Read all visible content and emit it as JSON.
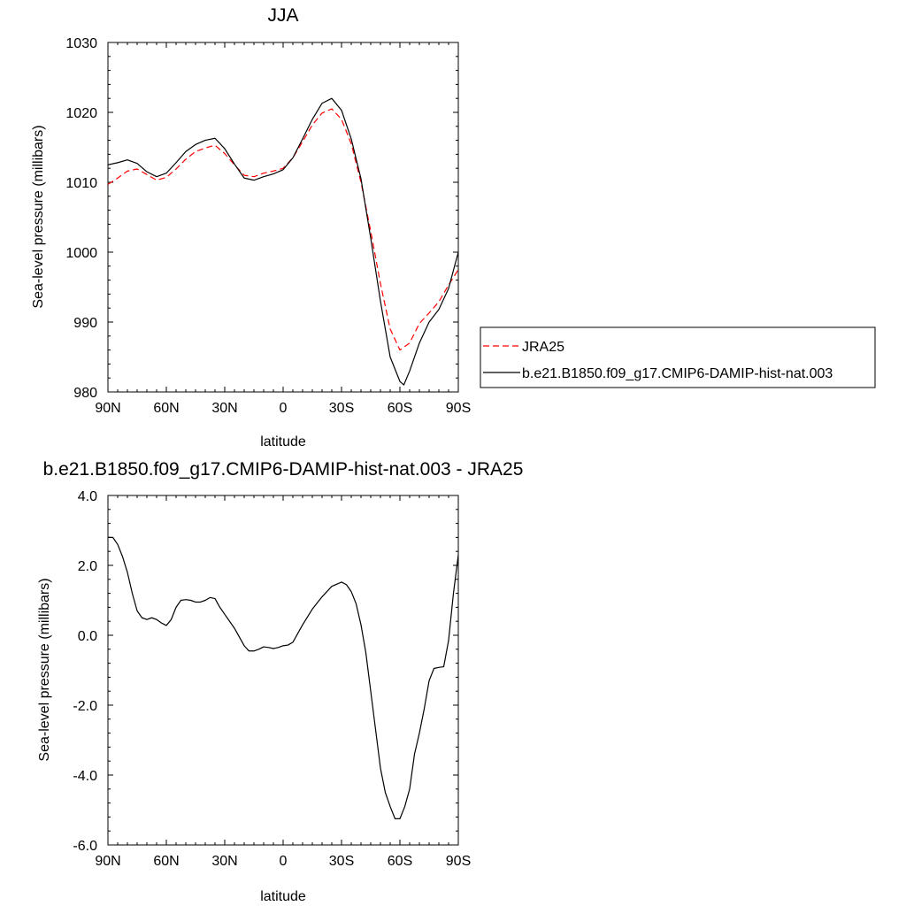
{
  "chart_data": [
    {
      "type": "line",
      "title": "JJA",
      "xlabel": "latitude",
      "ylabel": "Sea-level pressure (millibars)",
      "xlim": [
        90,
        -90
      ],
      "ylim": [
        980,
        1030
      ],
      "x_ticks": [
        90,
        60,
        30,
        0,
        -30,
        -60,
        -90
      ],
      "x_tick_labels": [
        "90N",
        "60N",
        "30N",
        "0",
        "30S",
        "60S",
        "90S"
      ],
      "y_ticks": [
        980,
        990,
        1000,
        1010,
        1020,
        1030
      ],
      "y_tick_labels": [
        "980",
        "990",
        "1000",
        "1010",
        "1020",
        "1030"
      ],
      "grid": false,
      "legend_position": "right-outside",
      "series": [
        {
          "name": "JRA25",
          "color": "#ff0000",
          "dash": "dashed",
          "x": [
            90,
            85,
            80,
            75,
            70,
            65,
            60,
            55,
            50,
            45,
            40,
            35,
            30,
            25,
            20,
            15,
            10,
            5,
            0,
            -5,
            -10,
            -15,
            -20,
            -25,
            -30,
            -35,
            -40,
            -45,
            -50,
            -55,
            -60,
            -65,
            -70,
            -75,
            -80,
            -85,
            -90
          ],
          "y": [
            1009.7,
            1010.6,
            1011.6,
            1011.9,
            1011.1,
            1010.3,
            1010.7,
            1011.9,
            1013.3,
            1014.4,
            1014.9,
            1015.3,
            1014.1,
            1012.5,
            1011.0,
            1010.8,
            1011.3,
            1011.6,
            1012.0,
            1013.5,
            1015.8,
            1018.2,
            1019.9,
            1020.5,
            1019.0,
            1015.5,
            1010.0,
            1003.0,
            995.5,
            989.0,
            986.0,
            987.0,
            989.8,
            991.3,
            992.9,
            995.3,
            997.5
          ]
        },
        {
          "name": "b.e21.B1850.f09_g17.CMIP6-DAMIP-hist-nat.003",
          "color": "#000000",
          "dash": "solid",
          "x": [
            90,
            85,
            80,
            75,
            70,
            65,
            60,
            55,
            50,
            45,
            40,
            35,
            30,
            25,
            20,
            15,
            10,
            5,
            0,
            -5,
            -10,
            -15,
            -20,
            -25,
            -30,
            -35,
            -40,
            -45,
            -50,
            -55,
            -60,
            -62,
            -65,
            -70,
            -75,
            -80,
            -85,
            -90
          ],
          "y": [
            1012.5,
            1012.8,
            1013.2,
            1012.7,
            1011.5,
            1010.8,
            1011.3,
            1012.8,
            1014.4,
            1015.4,
            1016.0,
            1016.3,
            1014.8,
            1012.6,
            1010.6,
            1010.3,
            1010.8,
            1011.2,
            1011.8,
            1013.5,
            1016.2,
            1019.0,
            1021.3,
            1022.0,
            1020.3,
            1016.2,
            1010.5,
            1002.0,
            993.0,
            985.0,
            981.5,
            981.0,
            983.0,
            987.0,
            990.0,
            991.8,
            994.8,
            1000.0
          ]
        }
      ]
    },
    {
      "type": "line",
      "title": "b.e21.B1850.f09_g17.CMIP6-DAMIP-hist-nat.003 - JRA25",
      "xlabel": "latitude",
      "ylabel": "Sea-level pressure (millibars)",
      "xlim": [
        90,
        -90
      ],
      "ylim": [
        -6.0,
        4.0
      ],
      "x_ticks": [
        90,
        60,
        30,
        0,
        -30,
        -60,
        -90
      ],
      "x_tick_labels": [
        "90N",
        "60N",
        "30N",
        "0",
        "30S",
        "60S",
        "90S"
      ],
      "y_ticks": [
        -6.0,
        -4.0,
        -2.0,
        0.0,
        2.0,
        4.0
      ],
      "y_tick_labels": [
        "-6.0",
        "-4.0",
        "-2.0",
        "0.0",
        "2.0",
        "4.0"
      ],
      "grid": false,
      "series": [
        {
          "color": "#000000",
          "dash": "solid",
          "x": [
            90,
            87.5,
            85,
            82.5,
            80,
            77.5,
            75,
            72.5,
            70,
            67.5,
            65,
            62.5,
            60,
            57.5,
            55,
            52.5,
            50,
            47.5,
            45,
            42.5,
            40,
            37.5,
            35,
            32.5,
            30,
            25,
            20,
            17.5,
            15,
            12.5,
            10,
            7.5,
            5,
            2.5,
            0,
            -2.5,
            -5,
            -10,
            -15,
            -20,
            -25,
            -30,
            -32.5,
            -35,
            -37.5,
            -40,
            -42.5,
            -45,
            -47.5,
            -50,
            -52.5,
            -55,
            -57.5,
            -60,
            -62.5,
            -65,
            -67.5,
            -70,
            -72.5,
            -75,
            -77.5,
            -80,
            -82.5,
            -85,
            -87.5,
            -90
          ],
          "y": [
            2.8,
            2.8,
            2.6,
            2.25,
            1.8,
            1.2,
            0.7,
            0.5,
            0.45,
            0.5,
            0.45,
            0.35,
            0.28,
            0.45,
            0.8,
            1.0,
            1.02,
            1.0,
            0.95,
            0.95,
            1.0,
            1.08,
            1.05,
            0.8,
            0.6,
            0.2,
            -0.3,
            -0.45,
            -0.45,
            -0.4,
            -0.33,
            -0.35,
            -0.38,
            -0.35,
            -0.3,
            -0.28,
            -0.2,
            0.3,
            0.75,
            1.1,
            1.4,
            1.52,
            1.45,
            1.25,
            0.9,
            0.3,
            -0.5,
            -1.6,
            -2.7,
            -3.8,
            -4.5,
            -4.9,
            -5.25,
            -5.25,
            -4.9,
            -4.4,
            -3.4,
            -2.8,
            -2.1,
            -1.3,
            -0.95,
            -0.92,
            -0.9,
            -0.15,
            1.2,
            2.3
          ]
        }
      ]
    }
  ]
}
